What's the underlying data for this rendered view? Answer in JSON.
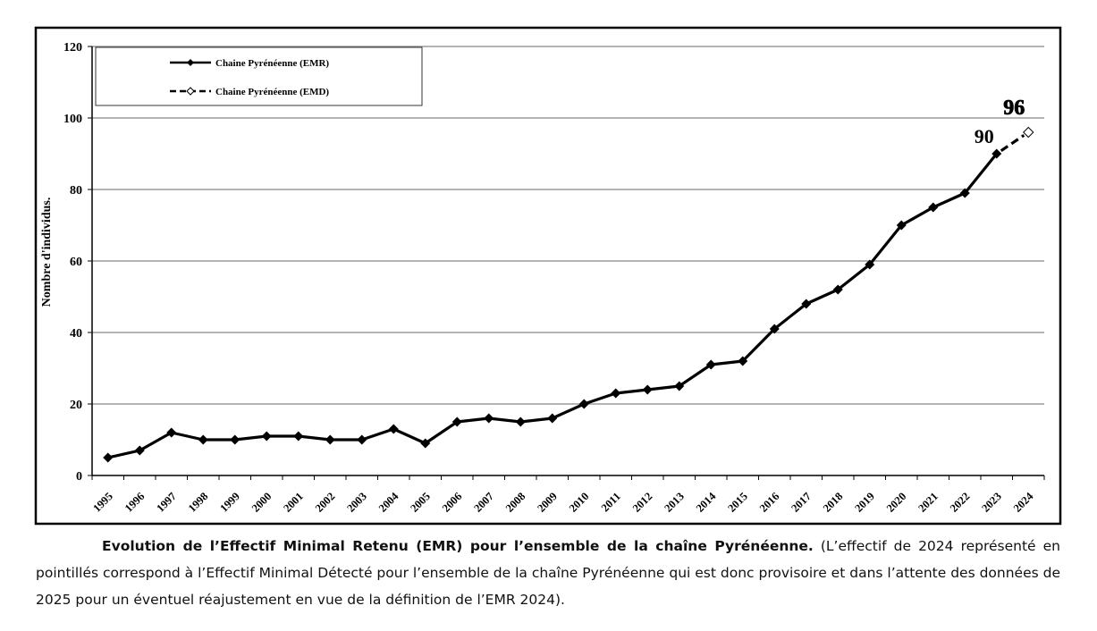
{
  "chart_data": {
    "type": "line",
    "ylabel": "Nombre d'individus.",
    "xlabel": "",
    "ylim": [
      0,
      120
    ],
    "yticks": [
      "0",
      "20",
      "40",
      "60",
      "80",
      "100",
      "120"
    ],
    "categories": [
      "1995",
      "1996",
      "1997",
      "1998",
      "1999",
      "2000",
      "2001",
      "2002",
      "2003",
      "2004",
      "2005",
      "2006",
      "2007",
      "2008",
      "2009",
      "2010",
      "2011",
      "2012",
      "2013",
      "2014",
      "2015",
      "2016",
      "2017",
      "2018",
      "2019",
      "2020",
      "2021",
      "2022",
      "2023",
      "2024"
    ],
    "grid": "horizontal",
    "legend_position": "top-left",
    "series": [
      {
        "name": "Chaine Pyrénéenne (EMR)",
        "style": "solid, filled diamond markers",
        "x": [
          "1995",
          "1996",
          "1997",
          "1998",
          "1999",
          "2000",
          "2001",
          "2002",
          "2003",
          "2004",
          "2005",
          "2006",
          "2007",
          "2008",
          "2009",
          "2010",
          "2011",
          "2012",
          "2013",
          "2014",
          "2015",
          "2016",
          "2017",
          "2018",
          "2019",
          "2020",
          "2021",
          "2022",
          "2023"
        ],
        "values": [
          5,
          7,
          12,
          10,
          10,
          11,
          11,
          10,
          10,
          13,
          9,
          15,
          16,
          15,
          16,
          20,
          23,
          24,
          25,
          31,
          32,
          41,
          48,
          52,
          59,
          70,
          75,
          79,
          90
        ]
      },
      {
        "name": "Chaine Pyrénéenne (EMD)",
        "style": "dashed, open diamond marker",
        "x": [
          "2023",
          "2024"
        ],
        "values": [
          90,
          96
        ]
      }
    ],
    "annotations": [
      {
        "text": "90",
        "x": "2023",
        "y": 90
      },
      {
        "text": "96",
        "x": "2024",
        "y": 96
      }
    ]
  },
  "caption": {
    "title": "Evolution de l’Effectif Minimal Retenu (EMR) pour l’ensemble de la chaîne Pyrénéenne.",
    "text": "(L’effectif de 2024 représenté en pointillés correspond à l’Effectif Minimal Détecté pour l’ensemble de la chaîne Pyrénéenne qui est donc provisoire et dans l’attente des données de 2025 pour un éventuel réajustement en vue de la définition de l’EMR 2024)."
  }
}
